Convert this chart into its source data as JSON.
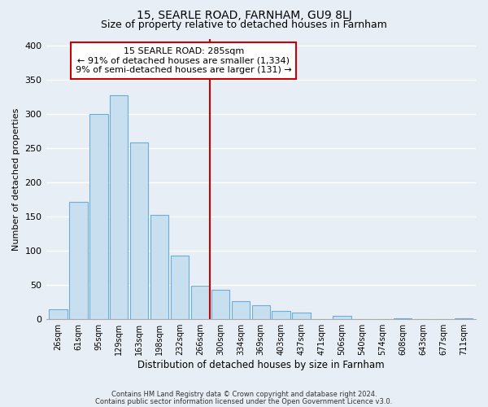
{
  "title": "15, SEARLE ROAD, FARNHAM, GU9 8LJ",
  "subtitle": "Size of property relative to detached houses in Farnham",
  "xlabel": "Distribution of detached houses by size in Farnham",
  "ylabel": "Number of detached properties",
  "bar_labels": [
    "26sqm",
    "61sqm",
    "95sqm",
    "129sqm",
    "163sqm",
    "198sqm",
    "232sqm",
    "266sqm",
    "300sqm",
    "334sqm",
    "369sqm",
    "403sqm",
    "437sqm",
    "471sqm",
    "506sqm",
    "540sqm",
    "574sqm",
    "608sqm",
    "643sqm",
    "677sqm",
    "711sqm"
  ],
  "bar_values": [
    15,
    172,
    300,
    327,
    258,
    153,
    93,
    49,
    43,
    27,
    20,
    12,
    10,
    0,
    5,
    0,
    0,
    2,
    0,
    0,
    2
  ],
  "bar_color": "#c8dff0",
  "bar_edge_color": "#6baed6",
  "vline_x": 7.5,
  "vline_color": "#cc0000",
  "annotation_title": "15 SEARLE ROAD: 285sqm",
  "annotation_line1": "← 91% of detached houses are smaller (1,334)",
  "annotation_line2": "9% of semi-detached houses are larger (131) →",
  "annotation_box_facecolor": "#ffffff",
  "annotation_box_edgecolor": "#cc0000",
  "ylim": [
    0,
    410
  ],
  "yticks": [
    0,
    50,
    100,
    150,
    200,
    250,
    300,
    350,
    400
  ],
  "footnote1": "Contains HM Land Registry data © Crown copyright and database right 2024.",
  "footnote2": "Contains public sector information licensed under the Open Government Licence v3.0.",
  "fig_facecolor": "#e8eef5",
  "axes_facecolor": "#e8eef5",
  "grid_color": "#ffffff",
  "title_fontsize": 10,
  "subtitle_fontsize": 9
}
